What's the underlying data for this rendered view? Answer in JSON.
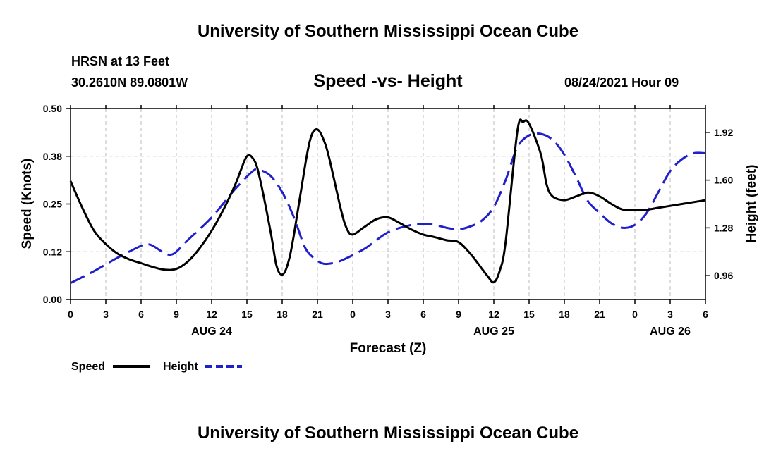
{
  "header": {
    "org_title": "University of Southern Mississippi Ocean Cube",
    "station_label": "HRSN at 13 Feet",
    "coordinates": "30.2610N  89.0801W",
    "chart_subtitle": "Speed -vs- Height",
    "datetime_label": "08/24/2021 Hour 09"
  },
  "footer": {
    "org_title": "University of Southern Mississippi Ocean Cube"
  },
  "colors": {
    "speed": "#000000",
    "height": "#1f1fcc",
    "grid": "#bbbbbb"
  },
  "chart_data": {
    "type": "line",
    "title": "Speed -vs- Height",
    "xlabel": "Forecast (Z)",
    "ylabel_left": "Speed (Knots)",
    "ylabel_right": "Height (feet)",
    "x_range": [
      0,
      54
    ],
    "x_ticks": [
      0,
      3,
      6,
      9,
      12,
      15,
      18,
      21,
      24,
      27,
      30,
      33,
      36,
      39,
      42,
      45,
      48,
      51,
      54
    ],
    "x_tick_labels": [
      "0",
      "3",
      "6",
      "9",
      "12",
      "15",
      "18",
      "21",
      "0",
      "3",
      "6",
      "9",
      "12",
      "15",
      "18",
      "21",
      "0",
      "3",
      "6"
    ],
    "day_labels": [
      {
        "x": 12,
        "label": "AUG 24"
      },
      {
        "x": 36,
        "label": "AUG 25"
      },
      {
        "x": 51,
        "label": "AUG 26"
      }
    ],
    "y_left_range": [
      0,
      0.5
    ],
    "y_left_ticks": [
      0.0,
      0.125,
      0.25,
      0.375,
      0.5
    ],
    "y_left_tick_labels": [
      "0.00",
      "0.12",
      "0.25",
      "0.38",
      "0.50"
    ],
    "y_right_range": [
      0.8,
      2.08
    ],
    "y_right_ticks": [
      0.96,
      1.28,
      1.6,
      1.92
    ],
    "y_right_tick_labels": [
      "0.96",
      "1.28",
      "1.60",
      "1.92"
    ],
    "grid": true,
    "legend_position": "bottom-left",
    "series": [
      {
        "name": "Speed",
        "axis": "left",
        "style": "solid",
        "x": [
          0,
          1,
          2,
          3,
          4,
          5,
          6,
          7,
          8,
          9,
          10,
          11,
          12,
          13,
          14,
          14.5,
          15,
          15.5,
          16,
          17,
          17.5,
          18,
          18.5,
          19,
          20,
          20.5,
          21,
          21.5,
          22,
          23,
          23.5,
          24,
          25,
          26,
          27,
          28,
          29,
          30,
          31,
          32,
          33,
          34,
          35,
          35.5,
          36,
          36.5,
          37,
          38,
          38.5,
          39,
          40,
          40.5,
          41,
          42,
          43,
          44,
          45,
          46,
          47,
          48,
          49,
          50,
          51,
          52,
          53,
          54
        ],
        "values": [
          0.31,
          0.24,
          0.18,
          0.145,
          0.12,
          0.105,
          0.095,
          0.085,
          0.078,
          0.08,
          0.1,
          0.135,
          0.18,
          0.235,
          0.3,
          0.34,
          0.375,
          0.37,
          0.33,
          0.18,
          0.09,
          0.065,
          0.095,
          0.17,
          0.36,
          0.43,
          0.445,
          0.42,
          0.37,
          0.235,
          0.185,
          0.17,
          0.19,
          0.21,
          0.215,
          0.2,
          0.183,
          0.17,
          0.163,
          0.155,
          0.15,
          0.12,
          0.08,
          0.06,
          0.045,
          0.075,
          0.15,
          0.44,
          0.465,
          0.46,
          0.38,
          0.3,
          0.27,
          0.26,
          0.27,
          0.28,
          0.27,
          0.25,
          0.235,
          0.235,
          0.235,
          0.24,
          0.245,
          0.25,
          0.255,
          0.26
        ]
      },
      {
        "name": "Height",
        "axis": "right",
        "style": "dashed",
        "x": [
          0,
          2,
          4,
          6,
          6.5,
          7,
          8,
          8.5,
          9,
          10,
          12,
          14,
          15.5,
          16,
          17,
          18,
          19,
          20,
          21,
          21.5,
          22,
          23,
          25,
          27,
          29,
          30,
          31,
          32,
          33,
          34,
          35,
          36,
          37,
          38,
          39,
          40,
          41,
          42,
          43,
          44,
          45,
          46,
          47,
          48,
          49,
          50,
          51,
          52,
          53,
          54
        ],
        "values": [
          0.91,
          0.99,
          1.08,
          1.16,
          1.17,
          1.16,
          1.11,
          1.1,
          1.12,
          1.2,
          1.35,
          1.54,
          1.66,
          1.67,
          1.63,
          1.52,
          1.35,
          1.14,
          1.06,
          1.04,
          1.04,
          1.06,
          1.14,
          1.25,
          1.3,
          1.305,
          1.3,
          1.28,
          1.27,
          1.29,
          1.33,
          1.42,
          1.6,
          1.82,
          1.9,
          1.91,
          1.87,
          1.77,
          1.62,
          1.46,
          1.38,
          1.31,
          1.28,
          1.3,
          1.38,
          1.52,
          1.66,
          1.74,
          1.78,
          1.78
        ]
      }
    ]
  }
}
